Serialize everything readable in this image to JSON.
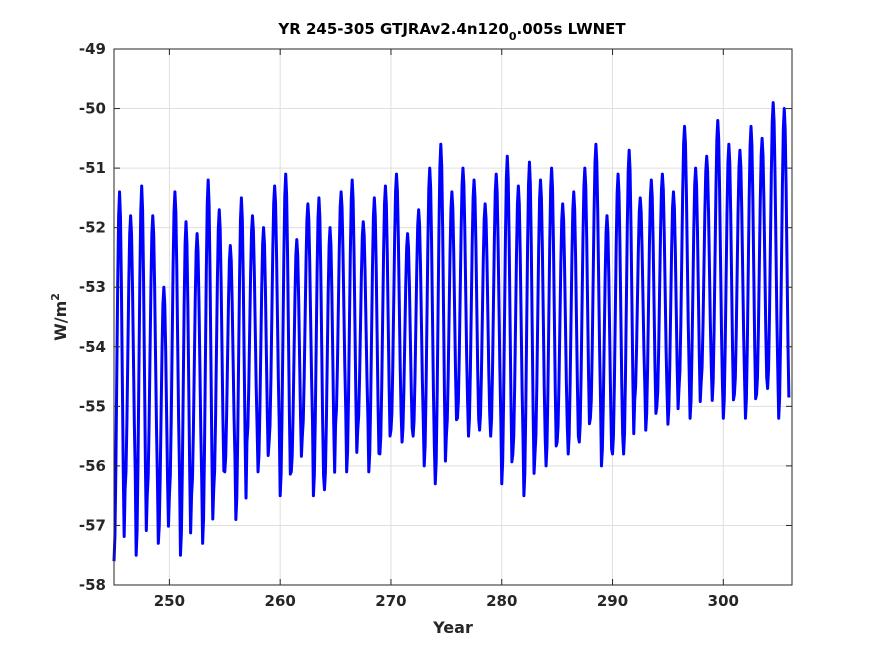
{
  "chart_data": {
    "type": "line",
    "title_main": "YR 245-305 GTJRAv2.4n120",
    "title_sub": "0",
    "title_tail": ".005s LWNET",
    "xlabel": "Year",
    "ylabel_main": "W/m",
    "ylabel_sup": "2",
    "xlim": [
      245,
      306.2
    ],
    "ylim": [
      -58,
      -49
    ],
    "xticks": [
      250,
      260,
      270,
      280,
      290,
      300
    ],
    "yticks": [
      -58,
      -57,
      -56,
      -55,
      -54,
      -53,
      -52,
      -51,
      -50,
      -49
    ],
    "grid": true,
    "colors": {
      "line": "#0000ff"
    },
    "series": [
      {
        "name": "",
        "x_start": 245,
        "x_step": 1,
        "peaks": [
          -51.4,
          -51.8,
          -51.3,
          -51.8,
          -53.0,
          -51.4,
          -51.9,
          -52.1,
          -51.2,
          -51.7,
          -52.3,
          -51.5,
          -51.8,
          -52.0,
          -51.3,
          -51.1,
          -52.2,
          -51.6,
          -51.5,
          -52.0,
          -51.4,
          -51.2,
          -51.9,
          -51.5,
          -51.3,
          -51.1,
          -52.1,
          -51.7,
          -51.0,
          -50.6,
          -51.4,
          -51.0,
          -51.2,
          -51.6,
          -51.1,
          -50.8,
          -51.3,
          -50.9,
          -51.2,
          -51.0,
          -51.6,
          -51.4,
          -51.0,
          -50.6,
          -51.8,
          -51.1,
          -50.7,
          -51.5,
          -51.2,
          -51.1,
          -51.4,
          -50.3,
          -51.0,
          -50.8,
          -50.2,
          -50.6,
          -50.7,
          -50.3,
          -50.5,
          -49.9,
          -50.0
        ],
        "troughs": [
          -57.6,
          -56.4,
          -57.5,
          -56.5,
          -57.3,
          -56.5,
          -57.5,
          -56.5,
          -57.3,
          -56.4,
          -56.1,
          -56.9,
          -55.6,
          -56.1,
          -55.6,
          -56.5,
          -56.1,
          -55.5,
          -56.5,
          -56.4,
          -55.3,
          -56.1,
          -55.4,
          -56.1,
          -55.8,
          -55.4,
          -55.6,
          -55.5,
          -56.0,
          -56.3,
          -55.5,
          -55.2,
          -55.5,
          -55.4,
          -55.5,
          -56.3,
          -55.8,
          -56.5,
          -55.8,
          -56.0,
          -55.6,
          -55.8,
          -55.6,
          -55.2,
          -56.0,
          -55.8,
          -55.8,
          -54.9,
          -55.4,
          -55.0,
          -55.3,
          -54.7,
          -55.2,
          -54.6,
          -54.9,
          -55.2,
          -54.8,
          -55.2,
          -54.8,
          -54.7,
          -55.2
        ]
      }
    ]
  }
}
